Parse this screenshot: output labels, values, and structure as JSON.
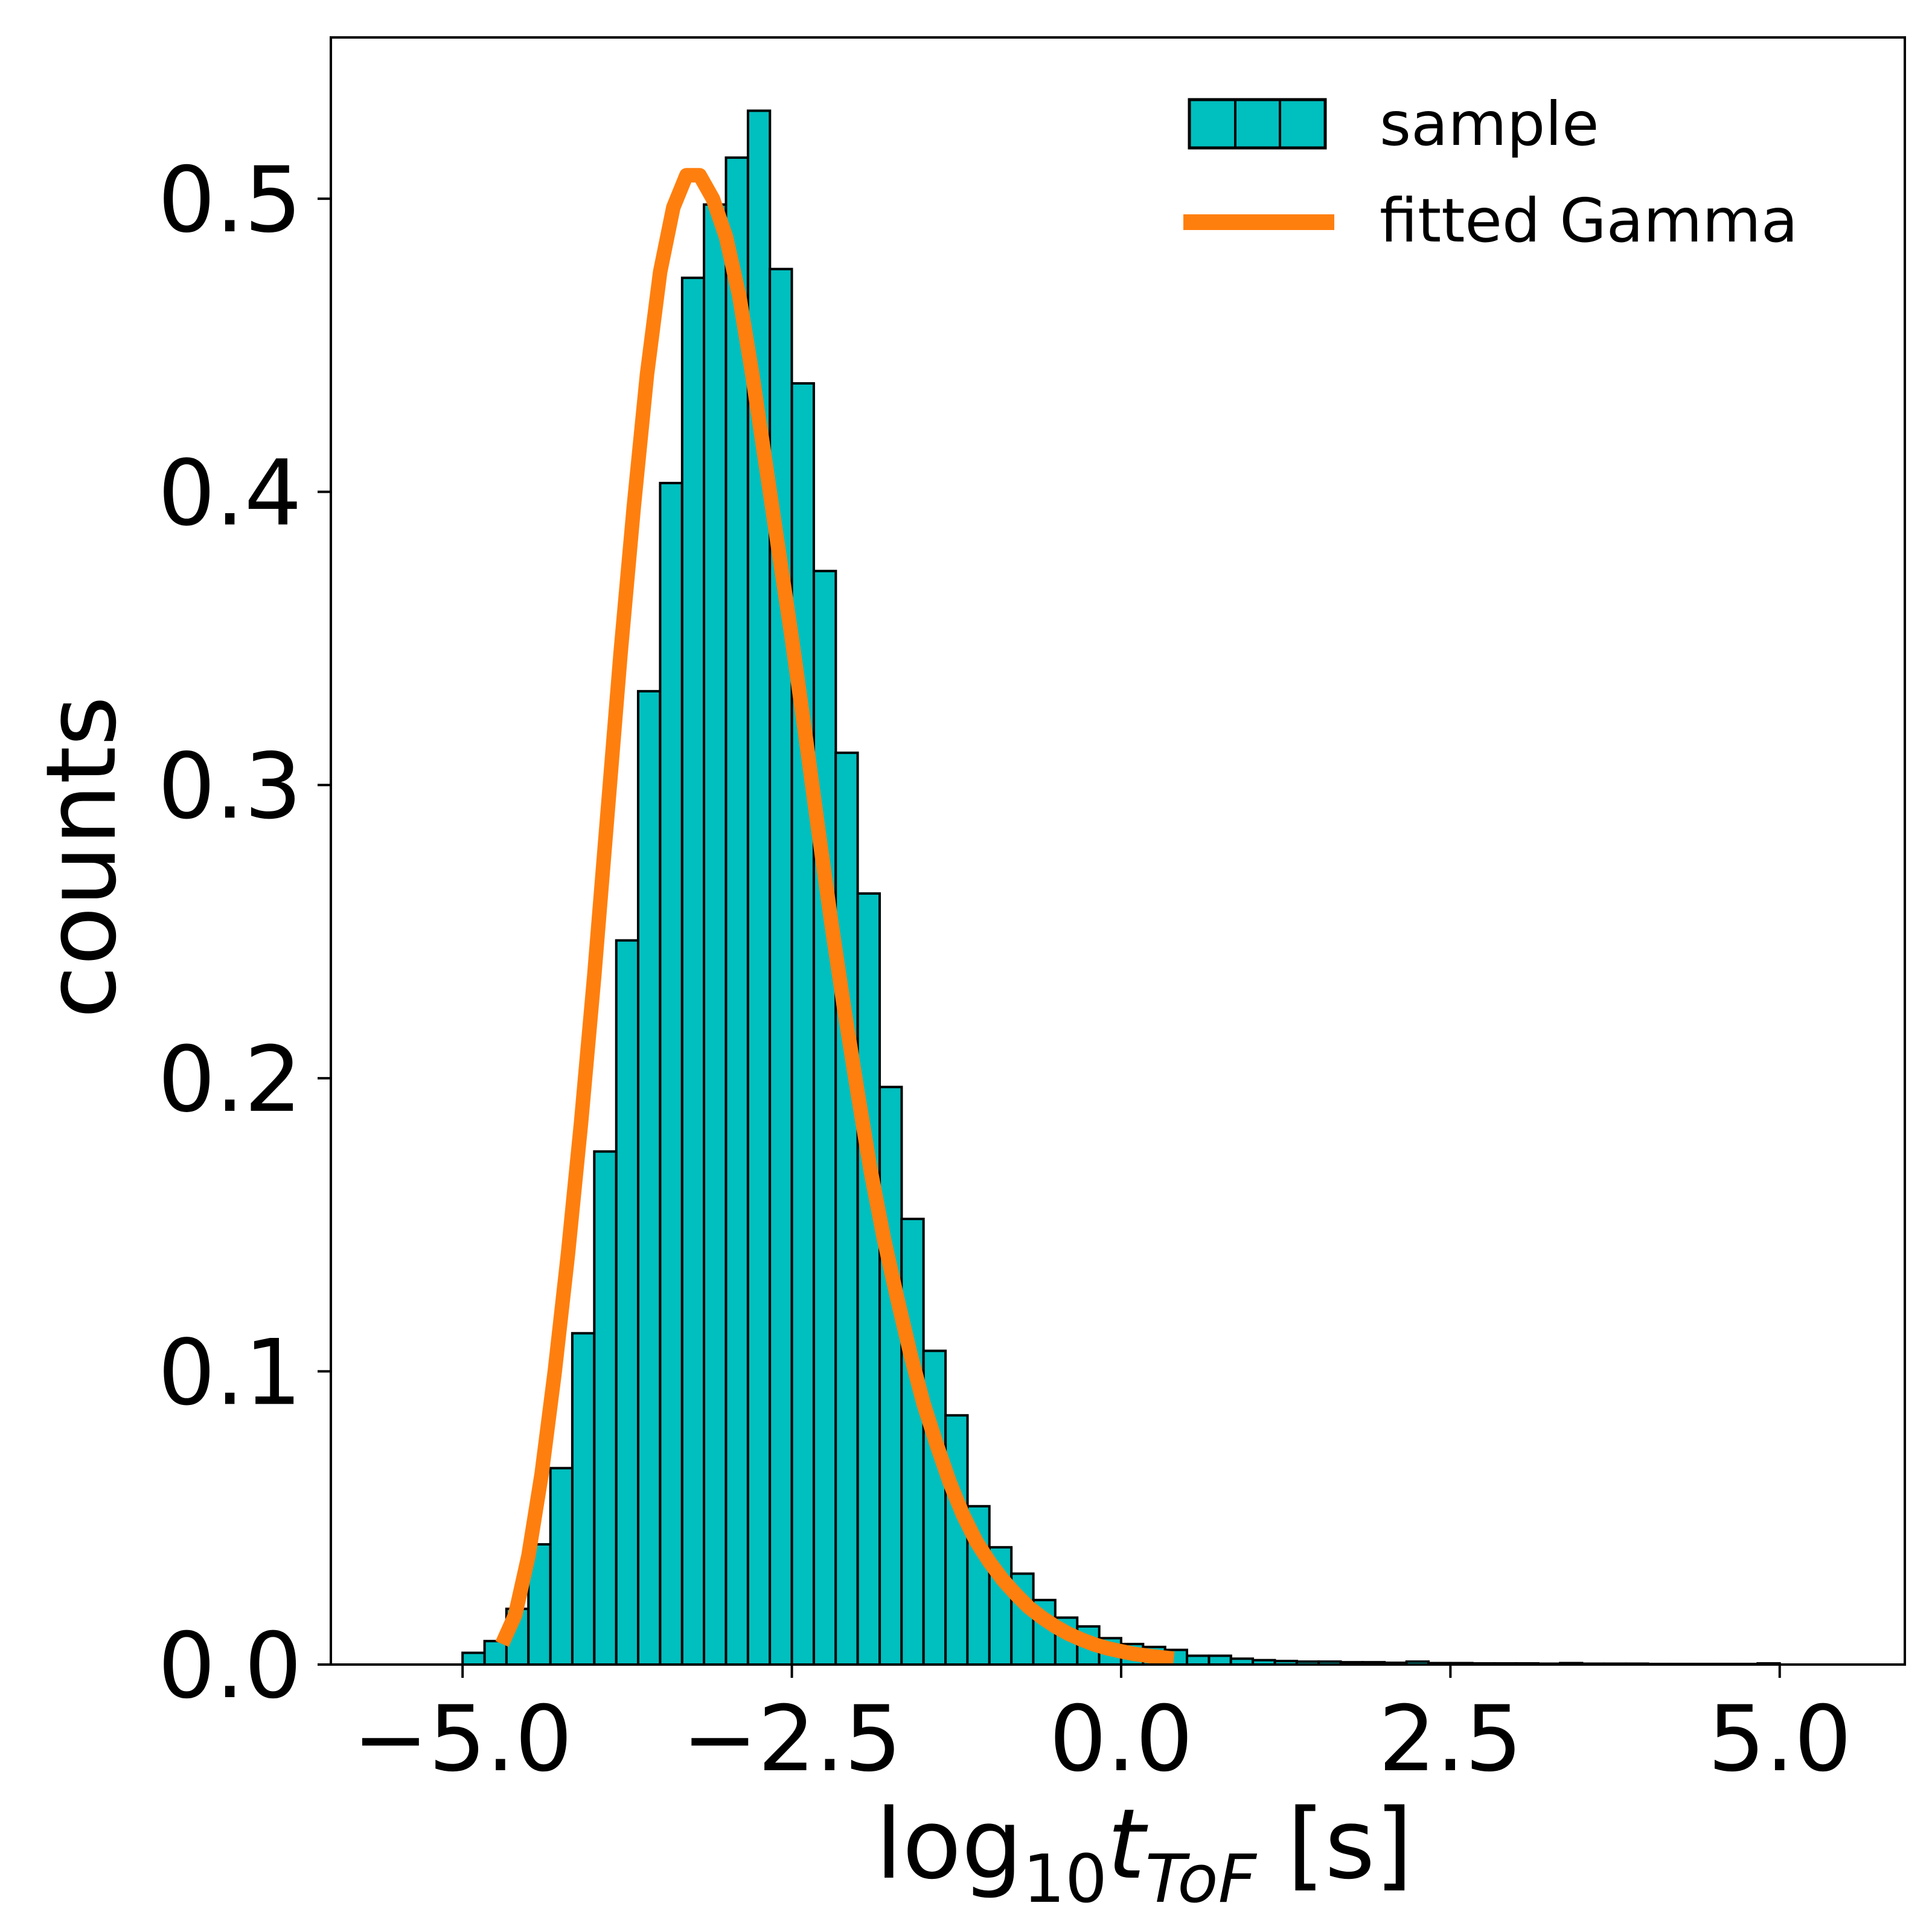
{
  "chart_data": {
    "type": "bar",
    "xlabel": {
      "base": "log",
      "sub": "10",
      "var": "t",
      "var_sub": "ToF",
      "unit": " [s]"
    },
    "ylabel": "counts",
    "xlim": [
      -6.0,
      5.95
    ],
    "ylim": [
      0,
      0.555
    ],
    "grid": false,
    "legend_placement": "top-right",
    "x_ticks": [
      -5.0,
      -2.5,
      0.0,
      2.5,
      5.0
    ],
    "x_tick_labels": [
      "−5.0",
      "−2.5",
      "0.0",
      "2.5",
      "5.0"
    ],
    "y_ticks": [
      0.0,
      0.1,
      0.2,
      0.3,
      0.4,
      0.5
    ],
    "y_tick_labels": [
      "0.0",
      "0.1",
      "0.2",
      "0.3",
      "0.4",
      "0.5"
    ],
    "bin_width": 0.1667,
    "histogram": {
      "name": "sample",
      "color": "#00bfbf",
      "edge_color": "#000000",
      "bin_lefts": [
        -5.0,
        -4.833,
        -4.667,
        -4.5,
        -4.333,
        -4.167,
        -4.0,
        -3.833,
        -3.667,
        -3.5,
        -3.333,
        -3.167,
        -3.0,
        -2.833,
        -2.667,
        -2.5,
        -2.333,
        -2.167,
        -2.0,
        -1.833,
        -1.667,
        -1.5,
        -1.333,
        -1.167,
        -1.0,
        -0.833,
        -0.667,
        -0.5,
        -0.333,
        -0.167,
        0.0,
        0.167,
        0.333,
        0.5,
        0.667,
        0.833,
        1.0,
        1.167,
        1.333,
        1.5,
        1.667,
        1.833,
        2.0,
        2.167,
        2.333,
        2.5,
        2.667,
        2.833,
        3.0,
        3.167,
        3.333,
        3.5,
        3.667,
        3.833,
        4.0,
        4.167,
        4.333,
        4.5,
        4.667,
        4.833
      ],
      "heights": [
        0.004,
        0.008,
        0.019,
        0.041,
        0.067,
        0.113,
        0.175,
        0.247,
        0.332,
        0.403,
        0.473,
        0.498,
        0.514,
        0.53,
        0.476,
        0.437,
        0.373,
        0.311,
        0.263,
        0.197,
        0.152,
        0.107,
        0.085,
        0.054,
        0.04,
        0.031,
        0.022,
        0.016,
        0.013,
        0.009,
        0.007,
        0.006,
        0.005,
        0.003,
        0.003,
        0.002,
        0.0015,
        0.0012,
        0.001,
        0.001,
        0.0008,
        0.0008,
        0.0006,
        0.001,
        0.0005,
        0.0005,
        0.0004,
        0.0004,
        0.0004,
        0.0003,
        0.0005,
        0.0003,
        0.0003,
        0.0003,
        0.0002,
        0.0002,
        0.0002,
        0.0002,
        0.0002,
        0.0004
      ]
    },
    "curve": {
      "name": "fitted Gamma",
      "color": "#ff7f0e",
      "x": [
        -4.7,
        -4.6,
        -4.5,
        -4.4,
        -4.3,
        -4.2,
        -4.1,
        -4.0,
        -3.9,
        -3.8,
        -3.7,
        -3.6,
        -3.5,
        -3.4,
        -3.3,
        -3.2,
        -3.1,
        -3.0,
        -2.9,
        -2.8,
        -2.7,
        -2.6,
        -2.5,
        -2.4,
        -2.3,
        -2.2,
        -2.1,
        -2.0,
        -1.9,
        -1.8,
        -1.7,
        -1.6,
        -1.5,
        -1.4,
        -1.3,
        -1.2,
        -1.1,
        -1.0,
        -0.9,
        -0.8,
        -0.7,
        -0.6,
        -0.5,
        -0.4,
        -0.3,
        -0.2,
        -0.1,
        0.0,
        0.1,
        0.2,
        0.3,
        0.4
      ],
      "y": [
        0.007,
        0.017,
        0.037,
        0.065,
        0.1,
        0.14,
        0.185,
        0.235,
        0.29,
        0.345,
        0.395,
        0.44,
        0.475,
        0.497,
        0.508,
        0.508,
        0.5,
        0.487,
        0.467,
        0.44,
        0.41,
        0.38,
        0.35,
        0.318,
        0.285,
        0.253,
        0.223,
        0.195,
        0.168,
        0.145,
        0.125,
        0.106,
        0.089,
        0.075,
        0.062,
        0.051,
        0.042,
        0.035,
        0.029,
        0.024,
        0.0195,
        0.016,
        0.013,
        0.0105,
        0.0085,
        0.0068,
        0.0055,
        0.0045,
        0.0036,
        0.003,
        0.0025,
        0.002
      ]
    }
  }
}
